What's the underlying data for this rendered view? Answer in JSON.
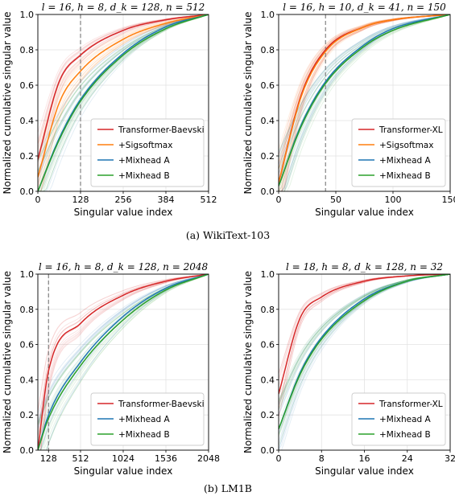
{
  "captions": {
    "a": "(a) WikiText-103",
    "b": "(b) LM1B"
  },
  "chart_data": [
    {
      "type": "line",
      "title": "l = 16, h = 8, d_k = 128, n = 512",
      "xlabel": "Singular value index",
      "ylabel": "Normalized cumulative singular value",
      "xlim": [
        0,
        512
      ],
      "ylim": [
        0,
        1.0
      ],
      "xticks": [
        0,
        128,
        256,
        384,
        512
      ],
      "yticks": [
        0.0,
        0.2,
        0.4,
        0.6,
        0.8,
        1.0
      ],
      "vline": 128,
      "legend_position": "lower-right",
      "grid": true,
      "series": [
        {
          "name": "Transformer-Baevski",
          "color": "#d62728",
          "x": [
            0,
            64,
            128,
            256,
            384,
            512
          ],
          "values": [
            0.18,
            0.62,
            0.77,
            0.91,
            0.97,
            1.0
          ]
        },
        {
          "name": "+Sigsoftmax",
          "color": "#ff7f0e",
          "x": [
            0,
            64,
            128,
            256,
            384,
            512
          ],
          "values": [
            0.08,
            0.5,
            0.68,
            0.86,
            0.95,
            1.0
          ]
        },
        {
          "name": "+Mixhead A",
          "color": "#1f77b4",
          "x": [
            0,
            64,
            128,
            256,
            384,
            512
          ],
          "values": [
            0.0,
            0.3,
            0.52,
            0.78,
            0.93,
            1.0
          ]
        },
        {
          "name": "+Mixhead B",
          "color": "#2ca02c",
          "x": [
            0,
            64,
            128,
            256,
            384,
            512
          ],
          "values": [
            0.0,
            0.29,
            0.51,
            0.77,
            0.92,
            1.0
          ]
        }
      ]
    },
    {
      "type": "line",
      "title": "l = 16, h = 10, d_k = 41, n = 150",
      "xlabel": "Singular value index",
      "ylabel": "Normalized cumulative singular value",
      "xlim": [
        0,
        150
      ],
      "ylim": [
        0,
        1.0
      ],
      "xticks": [
        0,
        50,
        100,
        150
      ],
      "yticks": [
        0.0,
        0.2,
        0.4,
        0.6,
        0.8,
        1.0
      ],
      "vline": 41,
      "legend_position": "lower-right",
      "grid": true,
      "series": [
        {
          "name": "Transformer-XL",
          "color": "#d62728",
          "x": [
            0,
            20,
            41,
            75,
            100,
            150
          ],
          "values": [
            0.05,
            0.55,
            0.8,
            0.93,
            0.97,
            1.0
          ]
        },
        {
          "name": "+Sigsoftmax",
          "color": "#ff7f0e",
          "x": [
            0,
            20,
            41,
            75,
            100,
            150
          ],
          "values": [
            0.05,
            0.54,
            0.79,
            0.93,
            0.97,
            1.0
          ]
        },
        {
          "name": "+Mixhead A",
          "color": "#1f77b4",
          "x": [
            0,
            20,
            41,
            75,
            100,
            150
          ],
          "values": [
            0.03,
            0.38,
            0.62,
            0.83,
            0.92,
            1.0
          ]
        },
        {
          "name": "+Mixhead B",
          "color": "#2ca02c",
          "x": [
            0,
            20,
            41,
            75,
            100,
            150
          ],
          "values": [
            0.03,
            0.37,
            0.61,
            0.82,
            0.91,
            1.0
          ]
        }
      ]
    },
    {
      "type": "line",
      "title": "l = 16, h = 8, d_k = 128, n = 2048",
      "xlabel": "Singular value index",
      "ylabel": "Normalized cumulative singular value",
      "xlim": [
        0,
        2048
      ],
      "ylim": [
        0,
        1.0
      ],
      "xticks": [
        128,
        512,
        1024,
        1536,
        2048
      ],
      "yticks": [
        0.0,
        0.2,
        0.4,
        0.6,
        0.8,
        1.0
      ],
      "vline": 128,
      "legend_position": "lower-right",
      "grid": true,
      "series": [
        {
          "name": "Transformer-Baevski",
          "color": "#d62728",
          "x": [
            0,
            128,
            512,
            1024,
            1536,
            2048
          ],
          "values": [
            0.0,
            0.45,
            0.72,
            0.88,
            0.96,
            1.0
          ]
        },
        {
          "name": "+Mixhead A",
          "color": "#1f77b4",
          "x": [
            0,
            128,
            512,
            1024,
            1536,
            2048
          ],
          "values": [
            0.0,
            0.2,
            0.5,
            0.76,
            0.92,
            1.0
          ]
        },
        {
          "name": "+Mixhead B",
          "color": "#2ca02c",
          "x": [
            0,
            128,
            512,
            1024,
            1536,
            2048
          ],
          "values": [
            0.0,
            0.18,
            0.48,
            0.74,
            0.91,
            1.0
          ]
        }
      ]
    },
    {
      "type": "line",
      "title": "l = 18, h = 8, d_k = 128, n = 32",
      "xlabel": "Singular value index",
      "ylabel": "Normalized cumulative singular value",
      "xlim": [
        0,
        32
      ],
      "ylim": [
        0,
        1.0
      ],
      "xticks": [
        0,
        8,
        16,
        24,
        32
      ],
      "yticks": [
        0.0,
        0.2,
        0.4,
        0.6,
        0.8,
        1.0
      ],
      "legend_position": "lower-right",
      "grid": true,
      "series": [
        {
          "name": "Transformer-XL",
          "color": "#d62728",
          "x": [
            0,
            4,
            8,
            16,
            24,
            32
          ],
          "values": [
            0.32,
            0.75,
            0.87,
            0.96,
            0.99,
            1.0
          ]
        },
        {
          "name": "+Mixhead A",
          "color": "#1f77b4",
          "x": [
            0,
            4,
            8,
            16,
            24,
            32
          ],
          "values": [
            0.12,
            0.44,
            0.64,
            0.86,
            0.96,
            1.0
          ]
        },
        {
          "name": "+Mixhead B",
          "color": "#2ca02c",
          "x": [
            0,
            4,
            8,
            16,
            24,
            32
          ],
          "values": [
            0.12,
            0.43,
            0.63,
            0.85,
            0.96,
            1.0
          ]
        }
      ]
    }
  ]
}
